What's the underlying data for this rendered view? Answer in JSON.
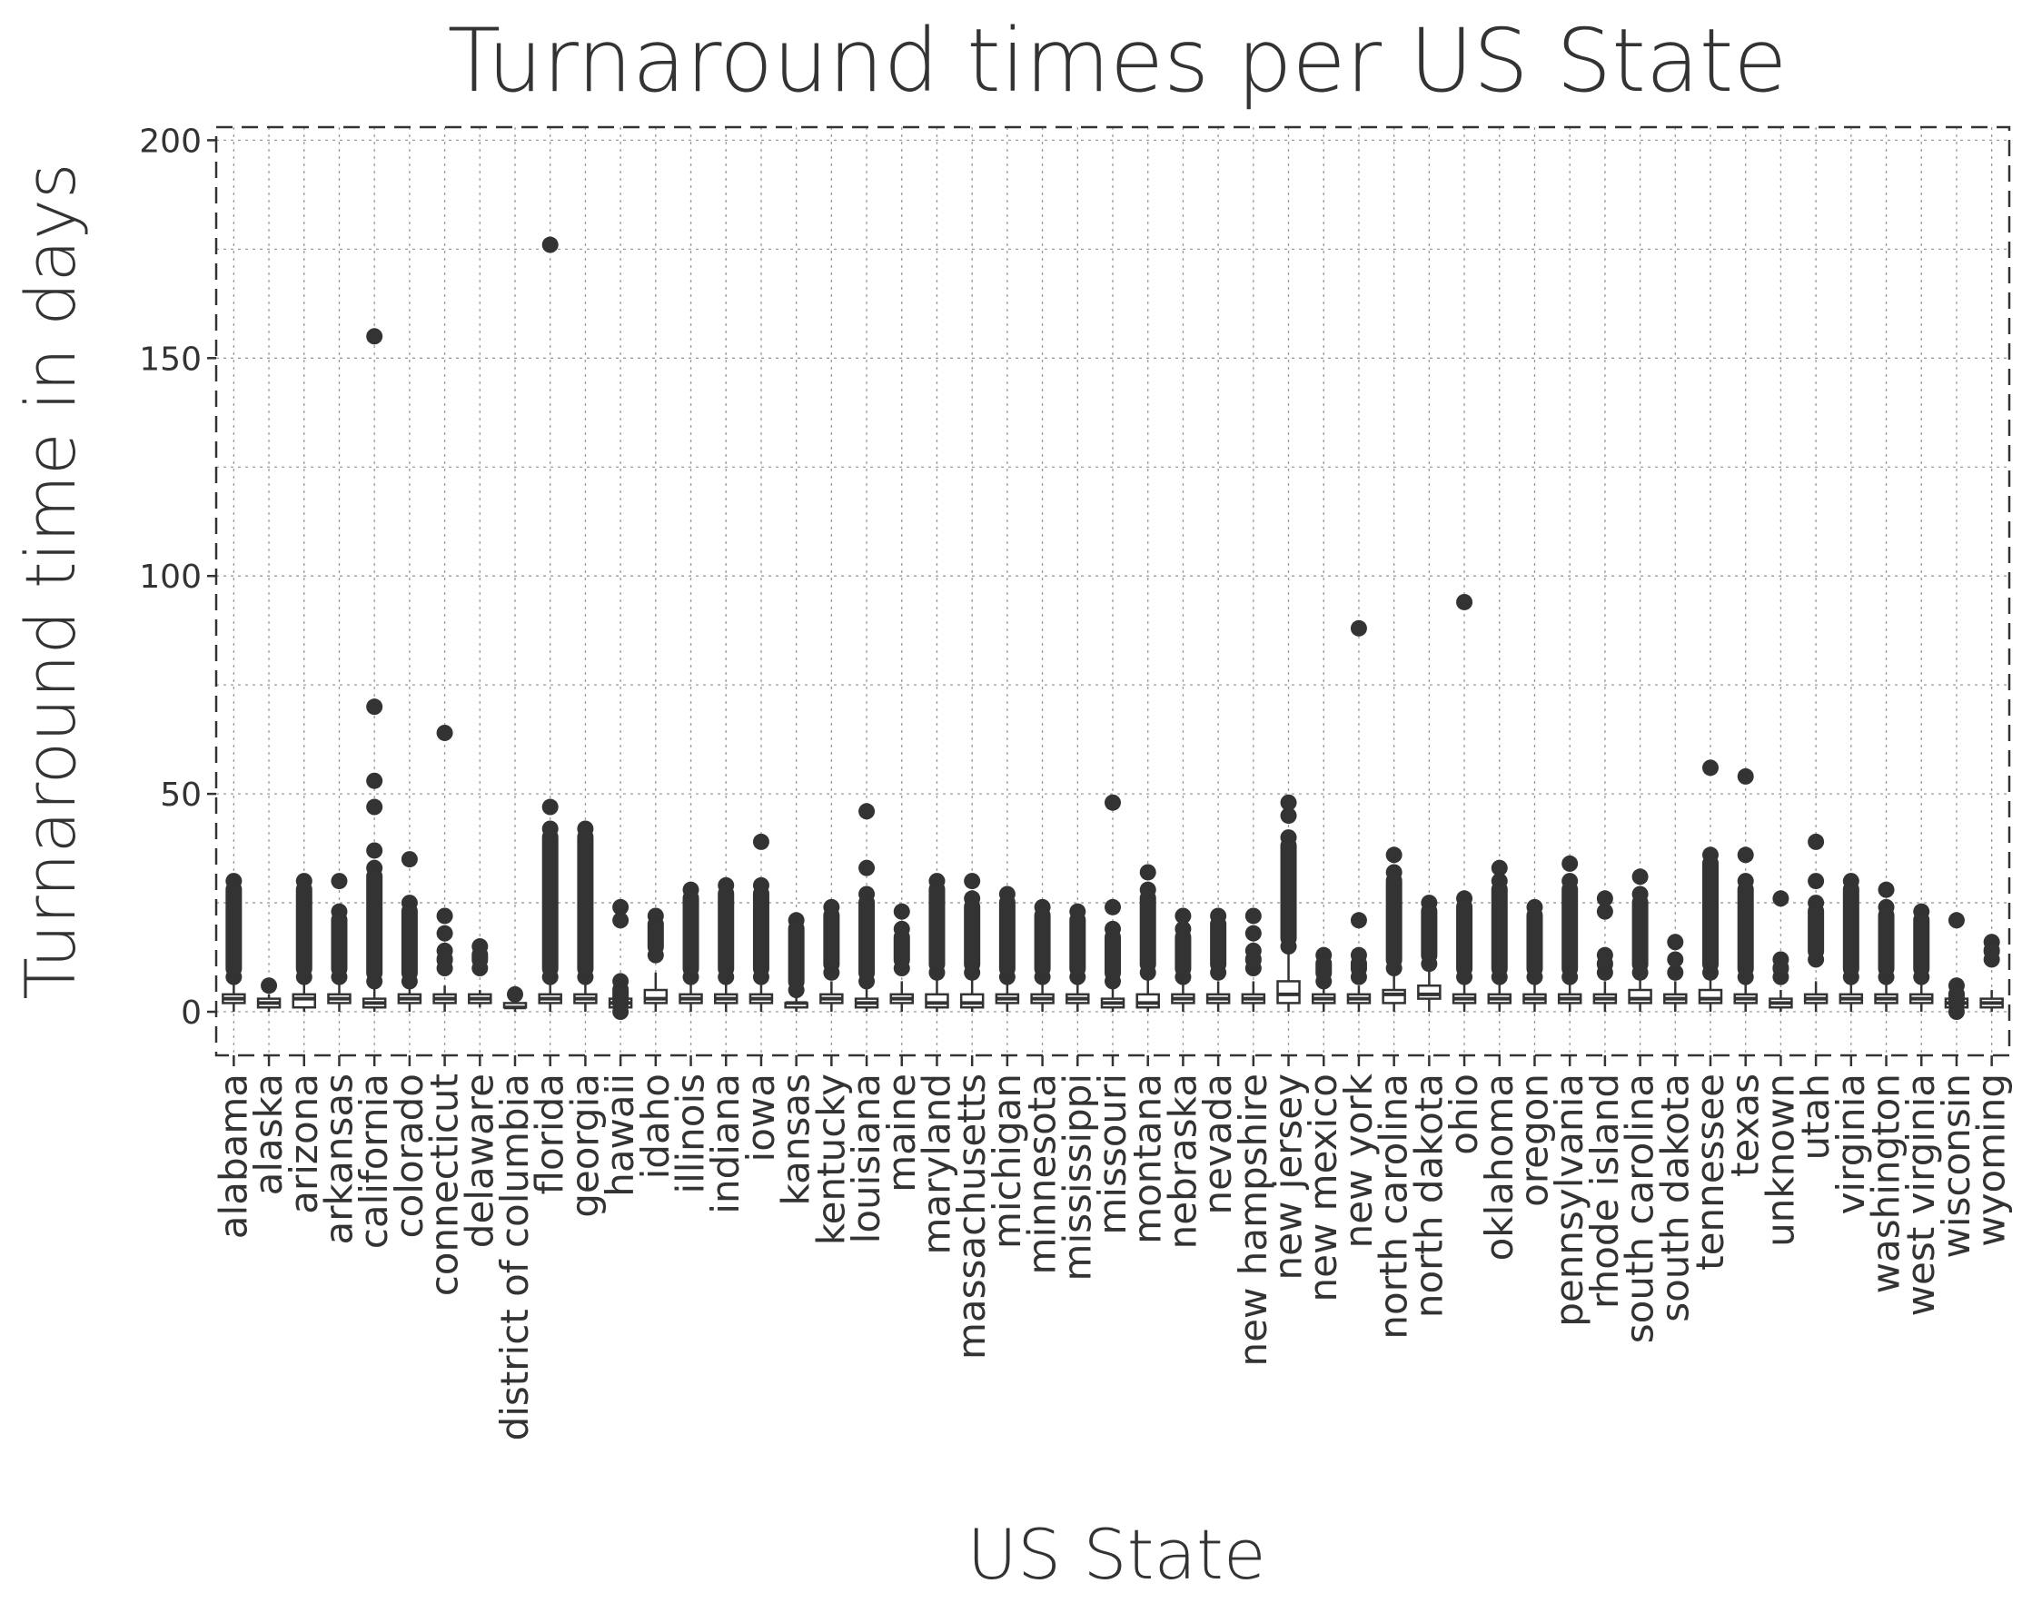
{
  "chart_data": {
    "type": "boxplot",
    "title": "Turnaround times per US State",
    "xlabel": "US State",
    "ylabel": "Turnaround time in days",
    "ylim": [
      -10,
      203
    ],
    "yticks": [
      0,
      50,
      100,
      150,
      200
    ],
    "grid": true,
    "categories": [
      "alabama",
      "alaska",
      "arizona",
      "arkansas",
      "california",
      "colorado",
      "connecticut",
      "delaware",
      "district of columbia",
      "florida",
      "georgia",
      "hawaii",
      "idaho",
      "illinois",
      "indiana",
      "iowa",
      "kansas",
      "kentucky",
      "louisiana",
      "maine",
      "maryland",
      "massachusetts",
      "michigan",
      "minnesota",
      "mississippi",
      "missouri",
      "montana",
      "nebraska",
      "nevada",
      "new hampshire",
      "new jersey",
      "new mexico",
      "new york",
      "north carolina",
      "north dakota",
      "ohio",
      "oklahoma",
      "oregon",
      "pennsylvania",
      "rhode island",
      "south carolina",
      "south dakota",
      "tennessee",
      "texas",
      "unknown",
      "utah",
      "virginia",
      "washington",
      "west virginia",
      "wisconsin",
      "wyoming"
    ],
    "series": [
      {
        "q1": 2,
        "median": 3,
        "q3": 4,
        "whislo": 0,
        "whishi": 7,
        "outliers": [
          8,
          30
        ]
      },
      {
        "q1": 1,
        "median": 2,
        "q3": 3,
        "whislo": 0,
        "whishi": 4,
        "outliers": [
          6
        ]
      },
      {
        "q1": 1,
        "median": 3,
        "q3": 4,
        "whislo": 0,
        "whishi": 7,
        "outliers": [
          8,
          30
        ]
      },
      {
        "q1": 2,
        "median": 3,
        "q3": 4,
        "whislo": 0,
        "whishi": 7,
        "outliers": [
          8,
          23,
          30
        ]
      },
      {
        "q1": 1,
        "median": 2,
        "q3": 3,
        "whislo": 0,
        "whishi": 6,
        "outliers": [
          7,
          33,
          37,
          47,
          53,
          70,
          155
        ]
      },
      {
        "q1": 2,
        "median": 3,
        "q3": 4,
        "whislo": 0,
        "whishi": 6,
        "outliers": [
          7,
          25,
          35
        ]
      },
      {
        "q1": 2,
        "median": 3,
        "q3": 4,
        "whislo": 0,
        "whishi": 6,
        "outliers": [
          10,
          14,
          18,
          22,
          64
        ]
      },
      {
        "q1": 2,
        "median": 3,
        "q3": 4,
        "whislo": 1,
        "whishi": 5,
        "outliers": [
          10,
          15
        ]
      },
      {
        "q1": 1,
        "median": 1,
        "q3": 2,
        "whislo": 0,
        "whishi": 3,
        "outliers": [
          4
        ]
      },
      {
        "q1": 2,
        "median": 3,
        "q3": 4,
        "whislo": 0,
        "whishi": 7,
        "outliers": [
          8,
          42,
          47,
          176
        ]
      },
      {
        "q1": 2,
        "median": 3,
        "q3": 4,
        "whislo": 0,
        "whishi": 7,
        "outliers": [
          8,
          42
        ]
      },
      {
        "q1": 1,
        "median": 2,
        "q3": 3,
        "whislo": 0,
        "whishi": 6,
        "outliers": [
          0,
          7,
          21,
          24
        ]
      },
      {
        "q1": 2,
        "median": 3,
        "q3": 5,
        "whislo": 0,
        "whishi": 9,
        "outliers": [
          13,
          22
        ]
      },
      {
        "q1": 2,
        "median": 3,
        "q3": 4,
        "whislo": 0,
        "whishi": 7,
        "outliers": [
          8,
          28
        ]
      },
      {
        "q1": 2,
        "median": 3,
        "q3": 4,
        "whislo": 0,
        "whishi": 7,
        "outliers": [
          8,
          29
        ]
      },
      {
        "q1": 2,
        "median": 3,
        "q3": 4,
        "whislo": 0,
        "whishi": 7,
        "outliers": [
          8,
          29,
          39
        ]
      },
      {
        "q1": 1,
        "median": 2,
        "q3": 2,
        "whislo": 0,
        "whishi": 4,
        "outliers": [
          5,
          21
        ]
      },
      {
        "q1": 2,
        "median": 3,
        "q3": 4,
        "whislo": 0,
        "whishi": 7,
        "outliers": [
          9,
          24
        ]
      },
      {
        "q1": 1,
        "median": 2,
        "q3": 3,
        "whislo": 0,
        "whishi": 6,
        "outliers": [
          7,
          27,
          33,
          46
        ]
      },
      {
        "q1": 2,
        "median": 3,
        "q3": 4,
        "whislo": 0,
        "whishi": 7,
        "outliers": [
          10,
          19,
          23
        ]
      },
      {
        "q1": 1,
        "median": 2,
        "q3": 4,
        "whislo": 0,
        "whishi": 8,
        "outliers": [
          9,
          30
        ]
      },
      {
        "q1": 1,
        "median": 2,
        "q3": 4,
        "whislo": 0,
        "whishi": 8,
        "outliers": [
          9,
          26,
          30
        ]
      },
      {
        "q1": 2,
        "median": 3,
        "q3": 4,
        "whislo": 0,
        "whishi": 7,
        "outliers": [
          8,
          27
        ]
      },
      {
        "q1": 2,
        "median": 3,
        "q3": 4,
        "whislo": 0,
        "whishi": 7,
        "outliers": [
          8,
          24
        ]
      },
      {
        "q1": 2,
        "median": 3,
        "q3": 4,
        "whislo": 0,
        "whishi": 7,
        "outliers": [
          8,
          23
        ]
      },
      {
        "q1": 1,
        "median": 2,
        "q3": 3,
        "whislo": 0,
        "whishi": 6,
        "outliers": [
          7,
          19,
          24,
          48
        ]
      },
      {
        "q1": 1,
        "median": 2,
        "q3": 4,
        "whislo": 0,
        "whishi": 8,
        "outliers": [
          9,
          28,
          32
        ]
      },
      {
        "q1": 2,
        "median": 3,
        "q3": 4,
        "whislo": 0,
        "whishi": 7,
        "outliers": [
          8,
          19,
          22
        ]
      },
      {
        "q1": 2,
        "median": 3,
        "q3": 4,
        "whislo": 0,
        "whishi": 7,
        "outliers": [
          9,
          22
        ]
      },
      {
        "q1": 2,
        "median": 3,
        "q3": 4,
        "whislo": 0,
        "whishi": 7,
        "outliers": [
          10,
          14,
          18,
          22
        ]
      },
      {
        "q1": 2,
        "median": 4,
        "q3": 7,
        "whislo": 0,
        "whishi": 14,
        "outliers": [
          15,
          40,
          45,
          48
        ]
      },
      {
        "q1": 2,
        "median": 3,
        "q3": 4,
        "whislo": 0,
        "whishi": 6,
        "outliers": [
          7,
          13
        ]
      },
      {
        "q1": 2,
        "median": 3,
        "q3": 4,
        "whislo": 0,
        "whishi": 6,
        "outliers": [
          8,
          13,
          21,
          88
        ]
      },
      {
        "q1": 2,
        "median": 4,
        "q3": 5,
        "whislo": 0,
        "whishi": 9,
        "outliers": [
          10,
          32,
          36
        ]
      },
      {
        "q1": 3,
        "median": 4,
        "q3": 6,
        "whislo": 0,
        "whishi": 10,
        "outliers": [
          11,
          25
        ]
      },
      {
        "q1": 2,
        "median": 3,
        "q3": 4,
        "whislo": 0,
        "whishi": 7,
        "outliers": [
          8,
          26,
          94
        ]
      },
      {
        "q1": 2,
        "median": 3,
        "q3": 4,
        "whislo": 0,
        "whishi": 7,
        "outliers": [
          8,
          30,
          33
        ]
      },
      {
        "q1": 2,
        "median": 3,
        "q3": 4,
        "whislo": 0,
        "whishi": 7,
        "outliers": [
          8,
          24
        ]
      },
      {
        "q1": 2,
        "median": 3,
        "q3": 4,
        "whislo": 0,
        "whishi": 7,
        "outliers": [
          8,
          30,
          34
        ]
      },
      {
        "q1": 2,
        "median": 3,
        "q3": 4,
        "whislo": 0,
        "whishi": 7,
        "outliers": [
          9,
          13,
          23,
          26
        ]
      },
      {
        "q1": 2,
        "median": 3,
        "q3": 5,
        "whislo": 0,
        "whishi": 8,
        "outliers": [
          9,
          27,
          31
        ]
      },
      {
        "q1": 2,
        "median": 3,
        "q3": 4,
        "whislo": 0,
        "whishi": 7,
        "outliers": [
          9,
          12,
          16
        ]
      },
      {
        "q1": 2,
        "median": 3,
        "q3": 5,
        "whislo": 0,
        "whishi": 8,
        "outliers": [
          9,
          36,
          56
        ]
      },
      {
        "q1": 2,
        "median": 3,
        "q3": 4,
        "whislo": 0,
        "whishi": 7,
        "outliers": [
          8,
          30,
          36,
          54
        ]
      },
      {
        "q1": 1,
        "median": 2,
        "q3": 3,
        "whislo": 0,
        "whishi": 5,
        "outliers": [
          8,
          12,
          26
        ]
      },
      {
        "q1": 2,
        "median": 3,
        "q3": 4,
        "whislo": 0,
        "whishi": 7,
        "outliers": [
          12,
          25,
          30,
          39
        ]
      },
      {
        "q1": 2,
        "median": 3,
        "q3": 4,
        "whislo": 0,
        "whishi": 7,
        "outliers": [
          8,
          30
        ]
      },
      {
        "q1": 2,
        "median": 3,
        "q3": 4,
        "whislo": 0,
        "whishi": 7,
        "outliers": [
          8,
          24,
          28
        ]
      },
      {
        "q1": 2,
        "median": 3,
        "q3": 4,
        "whislo": 0,
        "whishi": 7,
        "outliers": [
          8,
          23
        ]
      },
      {
        "q1": 1,
        "median": 2,
        "q3": 3,
        "whislo": 0,
        "whishi": 5,
        "outliers": [
          0,
          6,
          21
        ]
      },
      {
        "q1": 1,
        "median": 2,
        "q3": 3,
        "whislo": 0,
        "whishi": 5,
        "outliers": [
          12,
          16
        ]
      }
    ]
  }
}
